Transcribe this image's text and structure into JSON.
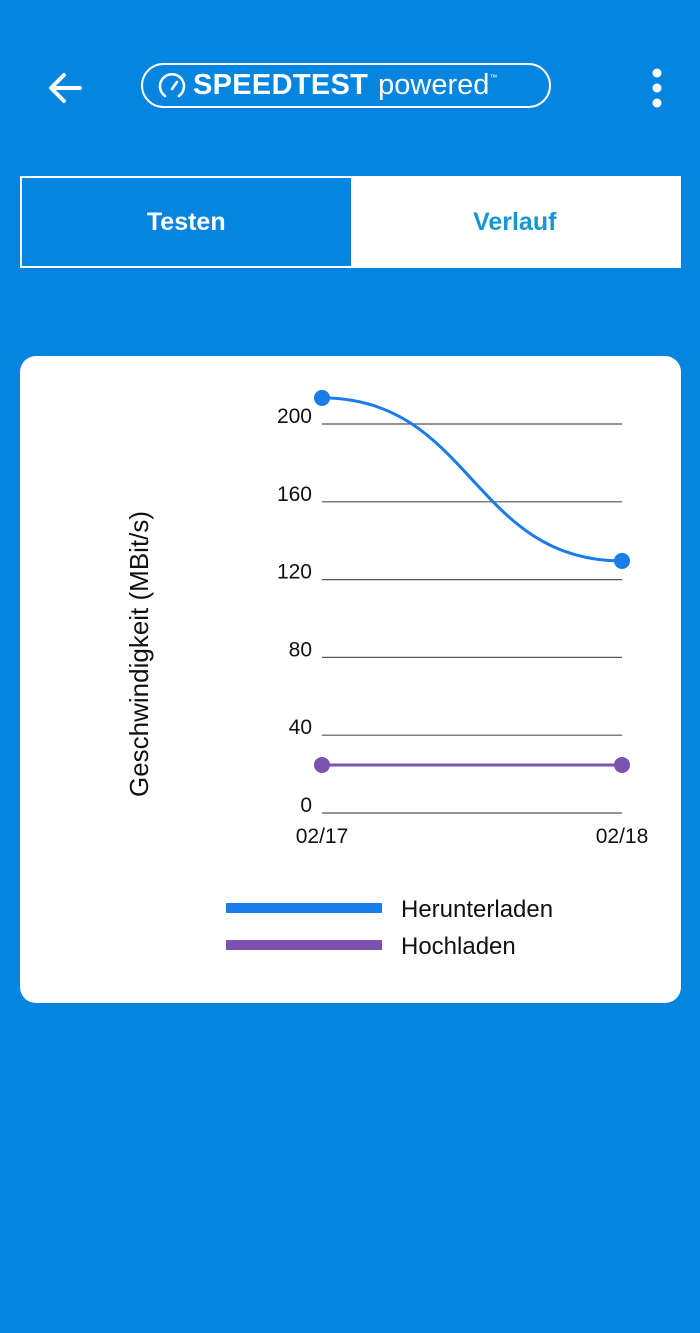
{
  "header": {
    "logo_brand": "SPEEDTEST",
    "logo_suffix": "powered",
    "logo_tm": "™"
  },
  "tabs": [
    {
      "label": "Testen",
      "active": true
    },
    {
      "label": "Verlauf",
      "active": false
    }
  ],
  "colors": {
    "background": "#0585E0",
    "download": "#1A7CE8",
    "upload": "#7B52B0",
    "tab_inactive_text": "#1596D4"
  },
  "chart_data": {
    "type": "line",
    "ylabel": "Geschwindigkeit (MBit/s)",
    "xlabel": "",
    "categories": [
      "02/17",
      "02/18"
    ],
    "yticks": [
      "0",
      "40",
      "80",
      "120",
      "160",
      "200"
    ],
    "ylim": [
      0,
      200
    ],
    "grid": true,
    "legend_position": "bottom",
    "series": [
      {
        "name": "Herunterladen",
        "values": [
          213.4,
          129.6
        ],
        "color": "#1A7CE8",
        "smooth": true
      },
      {
        "name": "Hochladen",
        "values": [
          24.7,
          24.7
        ],
        "color": "#7B52B0",
        "smooth": false
      }
    ]
  }
}
